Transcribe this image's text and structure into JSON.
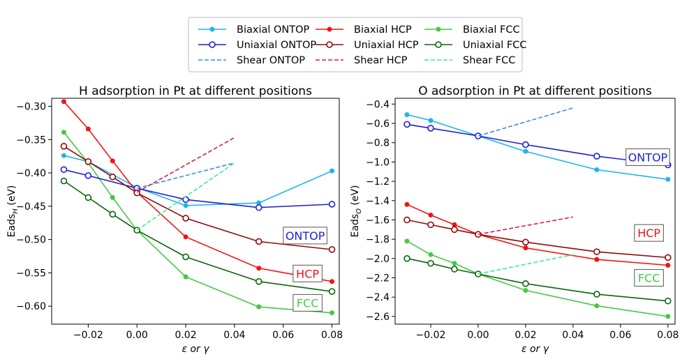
{
  "legend": {
    "entries": [
      {
        "label": "Biaxial ONTOP",
        "color": "#1eb4f0",
        "style": "solid-filled"
      },
      {
        "label": "Biaxial HCP",
        "color": "#f01414",
        "style": "solid-filled"
      },
      {
        "label": "Biaxial FCC",
        "color": "#46c846",
        "style": "solid-filled"
      },
      {
        "label": "Uniaxial ONTOP",
        "color": "#1e1ed2",
        "style": "solid-open"
      },
      {
        "label": "Uniaxial HCP",
        "color": "#8c0a0a",
        "style": "solid-open"
      },
      {
        "label": "Uniaxial FCC",
        "color": "#0a640a",
        "style": "solid-open"
      },
      {
        "label": "Shear ONTOP",
        "color": "#3c8cdc",
        "style": "dashed"
      },
      {
        "label": "Shear HCP",
        "color": "#d21e46",
        "style": "dashed"
      },
      {
        "label": "Shear FCC",
        "color": "#3ceb96",
        "style": "dashed"
      }
    ]
  },
  "chart_data": [
    {
      "type": "line",
      "title": "H adsorption in Pt at different positions",
      "xlabel": "ε or γ",
      "ylabel_main": "Eads",
      "ylabel_sub": "H",
      "ylabel_unit": " (eV)",
      "xlim": [
        -0.035,
        0.083
      ],
      "ylim": [
        -0.627,
        -0.288
      ],
      "xticks": [
        -0.02,
        0.0,
        0.02,
        0.04,
        0.06,
        0.08
      ],
      "xtick_labels": [
        "−0.02",
        "0.00",
        "0.02",
        "0.04",
        "0.06",
        "0.08"
      ],
      "yticks": [
        -0.6,
        -0.55,
        -0.5,
        -0.45,
        -0.4,
        -0.35,
        -0.3
      ],
      "ytick_labels": [
        "−0.60",
        "−0.55",
        "−0.50",
        "−0.45",
        "−0.40",
        "−0.35",
        "−0.30"
      ],
      "annotations": [
        {
          "text": "ONTOP",
          "color": "#2020e0",
          "x": 0.069,
          "y": -0.494
        },
        {
          "text": "HCP",
          "color": "#f01414",
          "x": 0.07,
          "y": -0.551
        },
        {
          "text": "FCC",
          "color": "#46c846",
          "x": 0.07,
          "y": -0.595
        }
      ],
      "series": [
        {
          "name": "Biaxial ONTOP",
          "style": "solid-filled",
          "color": "#1eb4f0",
          "x": [
            -0.03,
            -0.02,
            0.0,
            0.02,
            0.05,
            0.08
          ],
          "y": [
            -0.374,
            -0.383,
            -0.422,
            -0.449,
            -0.445,
            -0.397
          ]
        },
        {
          "name": "Biaxial HCP",
          "style": "solid-filled",
          "color": "#f01414",
          "x": [
            -0.03,
            -0.02,
            -0.01,
            0.0,
            0.02,
            0.05,
            0.08
          ],
          "y": [
            -0.293,
            -0.334,
            -0.382,
            -0.429,
            -0.496,
            -0.543,
            -0.563
          ]
        },
        {
          "name": "Biaxial FCC",
          "style": "solid-filled",
          "color": "#46c846",
          "x": [
            -0.03,
            -0.02,
            -0.01,
            0.0,
            0.02,
            0.05,
            0.08
          ],
          "y": [
            -0.339,
            -0.385,
            -0.437,
            -0.486,
            -0.556,
            -0.601,
            -0.61
          ]
        },
        {
          "name": "Uniaxial ONTOP",
          "style": "solid-open",
          "color": "#1e1ed2",
          "x": [
            -0.03,
            -0.02,
            0.0,
            0.02,
            0.05,
            0.08
          ],
          "y": [
            -0.395,
            -0.404,
            -0.423,
            -0.44,
            -0.452,
            -0.447
          ]
        },
        {
          "name": "Uniaxial HCP",
          "style": "solid-open",
          "color": "#8c0a0a",
          "x": [
            -0.03,
            -0.02,
            -0.01,
            0.0,
            0.02,
            0.05,
            0.08
          ],
          "y": [
            -0.36,
            -0.383,
            -0.406,
            -0.43,
            -0.468,
            -0.503,
            -0.515
          ]
        },
        {
          "name": "Uniaxial FCC",
          "style": "solid-open",
          "color": "#0a640a",
          "x": [
            -0.03,
            -0.02,
            -0.01,
            0.0,
            0.02,
            0.05,
            0.08
          ],
          "y": [
            -0.412,
            -0.437,
            -0.462,
            -0.486,
            -0.526,
            -0.563,
            -0.578
          ]
        },
        {
          "name": "Shear ONTOP",
          "style": "dashed",
          "color": "#3c8cdc",
          "x": [
            0.0,
            0.04
          ],
          "y": [
            -0.423,
            -0.385
          ]
        },
        {
          "name": "Shear HCP",
          "style": "dashed",
          "color": "#d21e46",
          "x": [
            0.0,
            0.04
          ],
          "y": [
            -0.429,
            -0.347
          ]
        },
        {
          "name": "Shear FCC",
          "style": "dashed",
          "color": "#3ceb96",
          "x": [
            0.0,
            0.04
          ],
          "y": [
            -0.486,
            -0.385
          ]
        }
      ]
    },
    {
      "type": "line",
      "title": "O adsorption in Pt at different positions",
      "xlabel": "ε or γ",
      "ylabel_main": "Eads",
      "ylabel_sub": "O",
      "ylabel_unit": " (eV)",
      "xlim": [
        -0.035,
        0.083
      ],
      "ylim": [
        -2.68,
        -0.34
      ],
      "xticks": [
        -0.02,
        0.0,
        0.02,
        0.04,
        0.06,
        0.08
      ],
      "xtick_labels": [
        "−0.02",
        "0.00",
        "0.02",
        "0.04",
        "0.06",
        "0.08"
      ],
      "yticks": [
        -2.6,
        -2.4,
        -2.2,
        -2.0,
        -1.8,
        -1.6,
        -1.4,
        -1.2,
        -1.0,
        -0.8,
        -0.6,
        -0.4
      ],
      "ytick_labels": [
        "−2.6",
        "−2.4",
        "−2.2",
        "−2.0",
        "−1.8",
        "−1.6",
        "−1.4",
        "−1.2",
        "−1.0",
        "−0.8",
        "−0.6",
        "−0.4"
      ],
      "annotations": [
        {
          "text": "ONTOP",
          "color": "#2020e0",
          "x": 0.0715,
          "y": -0.95
        },
        {
          "text": "HCP",
          "color": "#f01414",
          "x": 0.072,
          "y": -1.735
        },
        {
          "text": "FCC",
          "color": "#46c846",
          "x": 0.072,
          "y": -2.2
        }
      ],
      "series": [
        {
          "name": "Biaxial ONTOP",
          "style": "solid-filled",
          "color": "#1eb4f0",
          "x": [
            -0.03,
            -0.02,
            0.0,
            0.02,
            0.05,
            0.08
          ],
          "y": [
            -0.51,
            -0.57,
            -0.73,
            -0.89,
            -1.08,
            -1.18
          ]
        },
        {
          "name": "Biaxial HCP",
          "style": "solid-filled",
          "color": "#f01414",
          "x": [
            -0.03,
            -0.02,
            -0.01,
            0.0,
            0.02,
            0.05,
            0.08
          ],
          "y": [
            -1.44,
            -1.55,
            -1.65,
            -1.75,
            -1.89,
            -2.01,
            -2.07
          ]
        },
        {
          "name": "Biaxial FCC",
          "style": "solid-filled",
          "color": "#46c846",
          "x": [
            -0.03,
            -0.02,
            -0.01,
            0.0,
            0.02,
            0.05,
            0.08
          ],
          "y": [
            -1.82,
            -1.96,
            -2.05,
            -2.16,
            -2.33,
            -2.49,
            -2.6
          ]
        },
        {
          "name": "Uniaxial ONTOP",
          "style": "solid-open",
          "color": "#1e1ed2",
          "x": [
            -0.03,
            -0.02,
            0.0,
            0.02,
            0.05,
            0.08
          ],
          "y": [
            -0.61,
            -0.65,
            -0.73,
            -0.82,
            -0.94,
            -1.03
          ]
        },
        {
          "name": "Uniaxial HCP",
          "style": "solid-open",
          "color": "#8c0a0a",
          "x": [
            -0.03,
            -0.02,
            -0.01,
            0.0,
            0.02,
            0.05,
            0.08
          ],
          "y": [
            -1.6,
            -1.65,
            -1.7,
            -1.75,
            -1.83,
            -1.93,
            -1.99
          ]
        },
        {
          "name": "Uniaxial FCC",
          "style": "solid-open",
          "color": "#0a640a",
          "x": [
            -0.03,
            -0.02,
            -0.01,
            0.0,
            0.02,
            0.05,
            0.08
          ],
          "y": [
            -2.0,
            -2.05,
            -2.11,
            -2.16,
            -2.26,
            -2.37,
            -2.44
          ]
        },
        {
          "name": "Shear ONTOP",
          "style": "dashed",
          "color": "#3c8cdc",
          "x": [
            0.0,
            0.04
          ],
          "y": [
            -0.73,
            -0.44
          ]
        },
        {
          "name": "Shear HCP",
          "style": "dashed",
          "color": "#d21e46",
          "x": [
            0.0,
            0.04
          ],
          "y": [
            -1.75,
            -1.57
          ]
        },
        {
          "name": "Shear FCC",
          "style": "dashed",
          "color": "#3ceb96",
          "x": [
            0.0,
            0.04
          ],
          "y": [
            -2.16,
            -1.96
          ]
        }
      ]
    }
  ]
}
